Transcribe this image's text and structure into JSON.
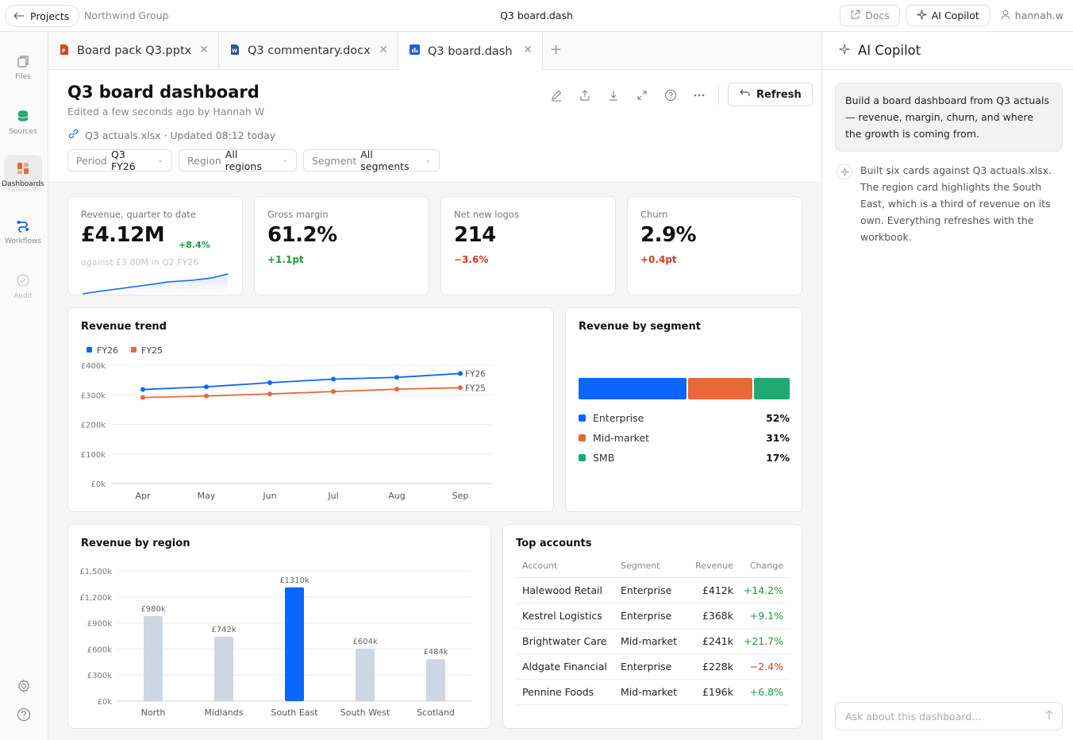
{
  "topbar": {
    "back_label": "Projects",
    "org": "Northwind Group",
    "title": "Q3 board.dash",
    "docs_label": "Docs",
    "copilot_label": "AI Copilot",
    "user": "hannah.w"
  },
  "rail": {
    "files": "Files",
    "sources": "Sources",
    "dashboards": "Dashboards",
    "workflows": "Workflows",
    "audit": "Audit"
  },
  "tabs": [
    {
      "label": "Board pack Q3.pptx",
      "icon": "pptx-icon",
      "color": "#d24726"
    },
    {
      "label": "Q3 commentary.docx",
      "icon": "docx-icon",
      "color": "#2b579a"
    },
    {
      "label": "Q3 board.dash",
      "icon": "dash-icon",
      "color": "#1a5fd6"
    }
  ],
  "header": {
    "title": "Q3 board dashboard",
    "subtitle": "Edited a few seconds ago by Hannah W",
    "source": "Q3 actuals.xlsx · Updated 08:12 today",
    "refresh_label": "Refresh",
    "filters": [
      {
        "label": "Period",
        "value": "Q3 FY26"
      },
      {
        "label": "Region",
        "value": "All regions"
      },
      {
        "label": "Segment",
        "value": "All segments"
      }
    ]
  },
  "kpis": [
    {
      "label": "Revenue, quarter to date",
      "value": "£4.12M",
      "delta": "+8.4%",
      "note": "against £3.80M in Q2 FY26"
    },
    {
      "label": "Gross margin",
      "value": "61.2%",
      "delta": "+1.1pt"
    },
    {
      "label": "Net new logos",
      "value": "214",
      "delta": "−3.6%"
    },
    {
      "label": "Churn",
      "value": "2.9%",
      "delta": "+0.4pt"
    }
  ],
  "colors": {
    "accent": "#0a66ff",
    "fy25": "#e8683a",
    "mid": "#e8683a",
    "smb": "#1faa74",
    "bar_muted": "#cdd6e3",
    "green": "#1f9a3a",
    "red": "#d23a2a"
  },
  "chart_data": [
    {
      "type": "line",
      "title": "Revenue trend",
      "categories": [
        "Apr",
        "May",
        "Jun",
        "Jul",
        "Aug",
        "Sep"
      ],
      "series": [
        {
          "name": "FY26",
          "values": [
            318,
            327,
            341,
            353,
            359,
            372
          ]
        },
        {
          "name": "FY25",
          "values": [
            291,
            296,
            303,
            311,
            319,
            324
          ]
        }
      ],
      "yticks": [
        "£0k",
        "£100k",
        "£200k",
        "£300k",
        "£400k"
      ],
      "ylim": [
        0,
        400
      ],
      "grid": true,
      "legend": "top-left"
    },
    {
      "type": "bar",
      "title": "Revenue by segment",
      "categories": [
        "Enterprise",
        "Mid-market",
        "SMB"
      ],
      "values": [
        52,
        31,
        17
      ],
      "labels": [
        "52%",
        "31%",
        "17%"
      ]
    },
    {
      "type": "bar",
      "title": "Revenue by region",
      "categories": [
        "North",
        "Midlands",
        "South East",
        "South West",
        "Scotland"
      ],
      "values": [
        980,
        742,
        1310,
        604,
        484
      ],
      "labels": [
        "£980k",
        "£742k",
        "£1310k",
        "£604k",
        "£484k"
      ],
      "highlight": "South East",
      "yticks": [
        "£0k",
        "£300k",
        "£600k",
        "£900k",
        "£1,200k",
        "£1,500k"
      ],
      "ylim": [
        0,
        1500
      ],
      "grid": true
    }
  ],
  "accounts": {
    "title": "Top accounts",
    "columns": [
      "Account",
      "Segment",
      "Revenue",
      "Change"
    ],
    "rows": [
      {
        "account": "Halewood Retail",
        "segment": "Enterprise",
        "revenue": "£412k",
        "change": "+14.2%",
        "dir": "up"
      },
      {
        "account": "Kestrel Logistics",
        "segment": "Enterprise",
        "revenue": "£368k",
        "change": "+9.1%",
        "dir": "up"
      },
      {
        "account": "Brightwater Care",
        "segment": "Mid-market",
        "revenue": "£241k",
        "change": "+21.7%",
        "dir": "up"
      },
      {
        "account": "Aldgate Financial",
        "segment": "Enterprise",
        "revenue": "£228k",
        "change": "−2.4%",
        "dir": "down"
      },
      {
        "account": "Pennine Foods",
        "segment": "Mid-market",
        "revenue": "£196k",
        "change": "+6.8%",
        "dir": "up"
      }
    ]
  },
  "copilot": {
    "title": "AI Copilot",
    "user_message": "Build a board dashboard from Q3 actuals — revenue, margin, churn, and where the growth is coming from.",
    "assistant_message": "Built six cards against Q3 actuals.xlsx. The region card highlights the South East, which is a third of revenue on its own. Everything refreshes with the workbook.",
    "input_placeholder": "Ask about this dashboard..."
  }
}
